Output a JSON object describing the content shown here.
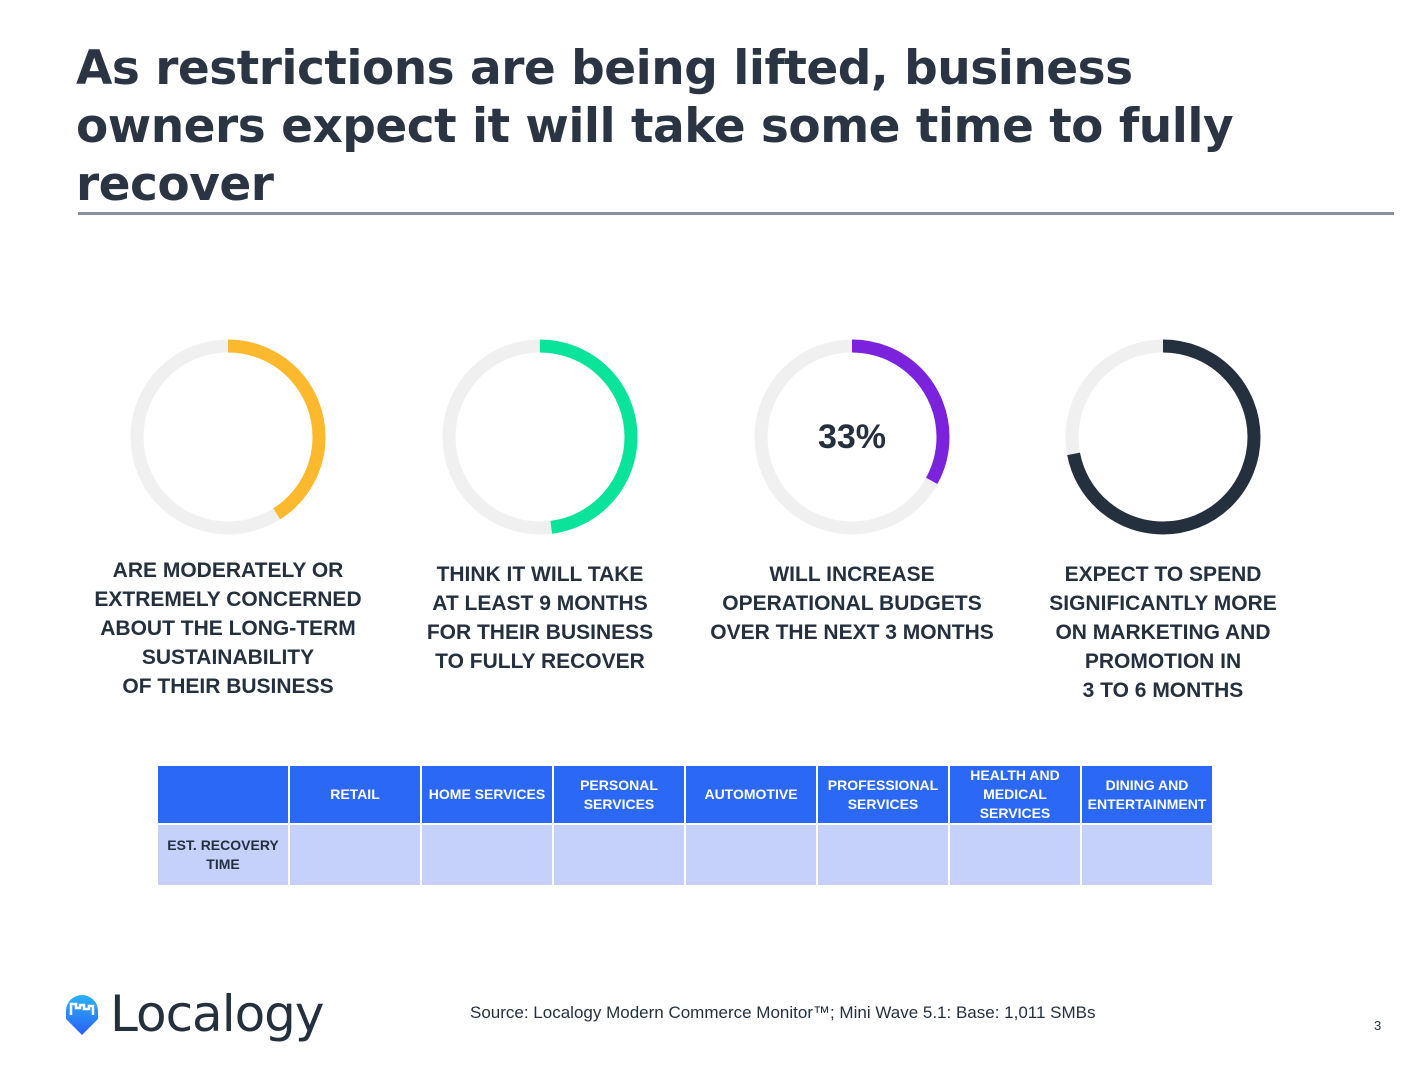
{
  "title": "As restrictions are being lifted, business owners expect it will take some time to fully recover",
  "chart_data": {
    "type": "pie",
    "variant": "donut",
    "track_color": "#f1f0f1",
    "items": [
      {
        "value": 41,
        "color": "#fdb92e",
        "value_label": "",
        "caption": "ARE  MODERATELY OR\nEXTREMELY CONCERNED\nABOUT THE LONG-TERM\nSUSTAINABILITY\nOF THEIR BUSINESS"
      },
      {
        "value": 48,
        "color": "#0ae39a",
        "value_label": "",
        "caption": "THINK IT  WILL TAKE\nAT LEAST 9 MONTHS\nFOR THEIR BUSINESS\nTO FULLY RECOVER"
      },
      {
        "value": 33,
        "color": "#7b22dc",
        "value_label": "33%",
        "caption": "WILL INCREASE\nOPERATIONAL BUDGETS\nOVER THE NEXT 3 MONTHS"
      },
      {
        "value": 72,
        "color": "#25303f",
        "value_label": "",
        "caption": "EXPECT TO SPEND\nSIGNIFICANTLY MORE\nON MARKETING AND\nPROMOTION IN\n3 TO 6 MONTHS"
      }
    ]
  },
  "table": {
    "headers": [
      "",
      "RETAIL",
      "HOME SERVICES",
      "PERSONAL SERVICES",
      "AUTOMOTIVE",
      "PROFESSIONAL SERVICES",
      "HEALTH AND MEDICAL SERVICES",
      "DINING AND ENTERTAINMENT"
    ],
    "row_label": "EST. RECOVERY TIME",
    "values": [
      "",
      "",
      "",
      "",
      "",
      "",
      ""
    ]
  },
  "logo": {
    "text": "Localogy",
    "colors": [
      "#2bb3f5",
      "#2b68f6"
    ]
  },
  "source": "Source: Localogy Modern Commerce Monitor™; Mini Wave 5.1: Base: 1,011 SMBs",
  "page_number": "3"
}
